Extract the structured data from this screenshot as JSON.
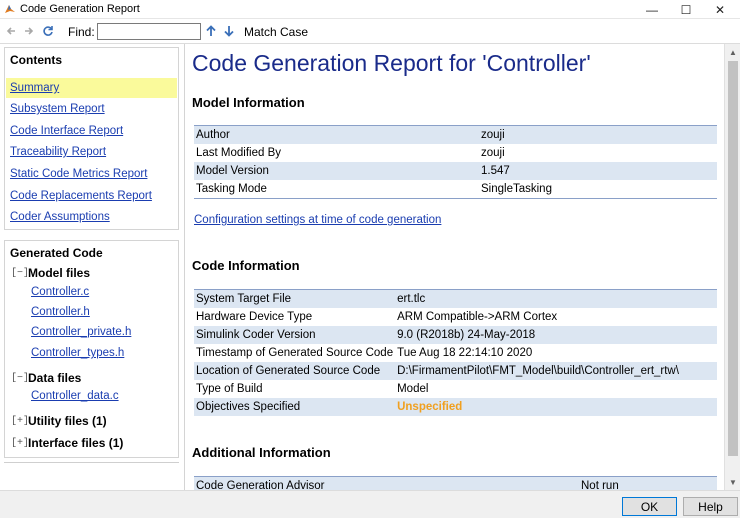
{
  "window": {
    "title": "Code Generation Report",
    "minimize": "—",
    "maximize": "☐",
    "close": "✕"
  },
  "toolbar": {
    "find_label": "Find:",
    "find_value": "",
    "match_case_label": "Match Case"
  },
  "contents": {
    "title": "Contents",
    "items": [
      {
        "label": "Summary",
        "active": true
      },
      {
        "label": "Subsystem Report"
      },
      {
        "label": "Code Interface Report"
      },
      {
        "label": "Traceability Report"
      },
      {
        "label": "Static Code Metrics Report"
      },
      {
        "label": "Code Replacements Report"
      },
      {
        "label": "Coder Assumptions"
      }
    ]
  },
  "generated_code": {
    "title": "Generated Code",
    "groups": [
      {
        "toggle": "[−]",
        "label": "Model files",
        "files": [
          "Controller.c",
          "Controller.h",
          "Controller_private.h",
          "Controller_types.h"
        ]
      },
      {
        "toggle": "[−]",
        "label": "Data files",
        "files": [
          "Controller_data.c"
        ]
      },
      {
        "toggle": "[+]",
        "label": "Utility files (1)",
        "files": []
      },
      {
        "toggle": "[+]",
        "label": "Interface files (1)",
        "files": []
      }
    ]
  },
  "report": {
    "title": "Code Generation Report for 'Controller'",
    "model_information": {
      "heading": "Model Information",
      "rows": [
        [
          "Author",
          "zouji"
        ],
        [
          "Last Modified By",
          "zouji"
        ],
        [
          "Model Version",
          "1.547"
        ],
        [
          "Tasking Mode",
          "SingleTasking"
        ]
      ]
    },
    "config_link": "Configuration settings at time of code generation",
    "code_information": {
      "heading": "Code Information",
      "rows": [
        [
          "System Target File",
          "ert.tlc"
        ],
        [
          "Hardware Device Type",
          "ARM Compatible->ARM Cortex"
        ],
        [
          "Simulink Coder Version",
          "9.0 (R2018b) 24-May-2018"
        ],
        [
          "Timestamp of Generated Source Code",
          "Tue Aug 18 22:14:10 2020"
        ],
        [
          "Location of Generated Source Code",
          "D:\\FirmamentPilot\\FMT_Model\\build\\Controller_ert_rtw\\"
        ],
        [
          "Type of Build",
          "Model"
        ],
        [
          "Objectives Specified",
          "Unspecified"
        ]
      ]
    },
    "additional_information": {
      "heading": "Additional Information",
      "rows": [
        [
          "Code Generation Advisor",
          "Not run"
        ]
      ]
    }
  },
  "buttons": {
    "ok": "OK",
    "help": "Help"
  },
  "colors": {
    "link": "#1a3db0",
    "title": "#1a2b8a",
    "row_alt": "#dce6f2",
    "highlight": "#fafa9b",
    "warning": "#f0a020"
  }
}
